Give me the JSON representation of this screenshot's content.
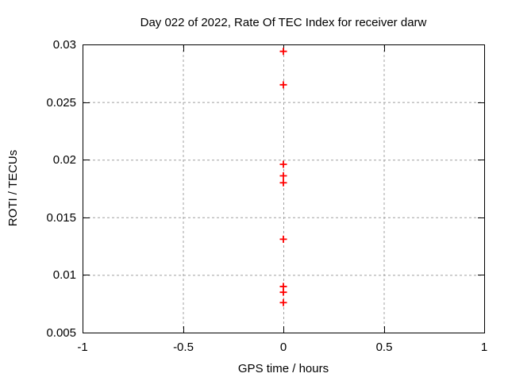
{
  "chart_data": {
    "type": "scatter",
    "title": "Day 022 of 2022, Rate Of TEC Index for receiver darw",
    "xlabel": "GPS time / hours",
    "ylabel": "ROTI / TECUs",
    "xlim": [
      -1,
      1
    ],
    "ylim": [
      0.005,
      0.03
    ],
    "xticks": [
      -1,
      -0.5,
      0,
      0.5,
      1
    ],
    "xtick_labels": [
      "-1",
      "-0.5",
      "0",
      "0.5",
      "1"
    ],
    "yticks": [
      0.005,
      0.01,
      0.015,
      0.02,
      0.025,
      0.03
    ],
    "ytick_labels": [
      "0.005",
      "0.01",
      "0.015",
      "0.02",
      "0.025",
      "0.03"
    ],
    "grid": true,
    "legend": "none",
    "series": [
      {
        "name": "ROTI",
        "marker": "plus",
        "color": "#ff0000",
        "x": [
          0,
          0,
          0,
          0,
          0,
          0,
          0,
          0,
          0
        ],
        "y": [
          0.0294,
          0.0265,
          0.0196,
          0.0186,
          0.018,
          0.0131,
          0.009,
          0.0085,
          0.0076
        ]
      }
    ]
  },
  "colors": {
    "background": "#ffffff",
    "border": "#000000",
    "grid": "#a0a0a0",
    "marker": "#ff0000",
    "text": "#000000"
  }
}
